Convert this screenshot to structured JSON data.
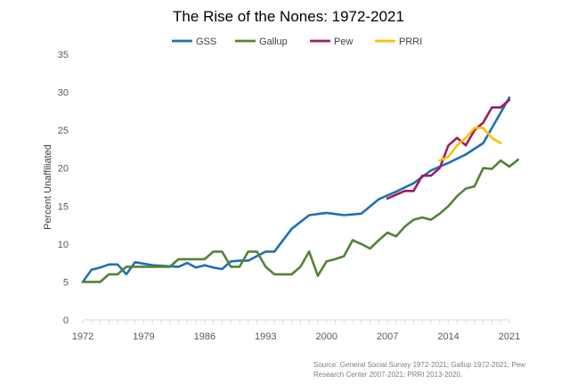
{
  "chart_data": {
    "type": "line",
    "title": "The Rise of the Nones: 1972-2021",
    "ylabel": "Percent Unaffiliated",
    "xlabel": "",
    "xlim": [
      1972,
      2021
    ],
    "ylim": [
      0,
      35
    ],
    "x_ticks": [
      1972,
      1979,
      1986,
      1993,
      2000,
      2007,
      2014,
      2021
    ],
    "y_ticks": [
      0,
      5,
      10,
      15,
      20,
      25,
      30,
      35
    ],
    "legend_position": "top",
    "grid": false,
    "series": [
      {
        "name": "GSS",
        "color": "#1f6fb5",
        "points": [
          [
            1972,
            5.0
          ],
          [
            1973,
            6.6
          ],
          [
            1974,
            6.9
          ],
          [
            1975,
            7.3
          ],
          [
            1976,
            7.3
          ],
          [
            1977,
            6.0
          ],
          [
            1978,
            7.6
          ],
          [
            1980,
            7.2
          ],
          [
            1983,
            7.0
          ],
          [
            1984,
            7.5
          ],
          [
            1985,
            6.9
          ],
          [
            1986,
            7.2
          ],
          [
            1987,
            6.9
          ],
          [
            1988,
            6.7
          ],
          [
            1989,
            7.7
          ],
          [
            1990,
            7.8
          ],
          [
            1991,
            7.8
          ],
          [
            1993,
            9.0
          ],
          [
            1994,
            9.0
          ],
          [
            1996,
            12.0
          ],
          [
            1998,
            13.8
          ],
          [
            2000,
            14.1
          ],
          [
            2002,
            13.8
          ],
          [
            2004,
            14.0
          ],
          [
            2006,
            15.9
          ],
          [
            2008,
            16.9
          ],
          [
            2010,
            18.0
          ],
          [
            2012,
            19.7
          ],
          [
            2014,
            20.7
          ],
          [
            2016,
            21.8
          ],
          [
            2018,
            23.3
          ],
          [
            2021,
            29.3
          ]
        ]
      },
      {
        "name": "Gallup",
        "color": "#548235",
        "points": [
          [
            1972,
            5.0
          ],
          [
            1973,
            5.0
          ],
          [
            1974,
            5.0
          ],
          [
            1975,
            6.0
          ],
          [
            1976,
            6.0
          ],
          [
            1977,
            7.0
          ],
          [
            1978,
            7.0
          ],
          [
            1980,
            7.0
          ],
          [
            1981,
            7.0
          ],
          [
            1982,
            7.0
          ],
          [
            1983,
            8.0
          ],
          [
            1984,
            8.0
          ],
          [
            1985,
            8.0
          ],
          [
            1986,
            8.0
          ],
          [
            1987,
            9.0
          ],
          [
            1988,
            9.0
          ],
          [
            1989,
            7.0
          ],
          [
            1990,
            7.0
          ],
          [
            1991,
            9.0
          ],
          [
            1992,
            9.0
          ],
          [
            1993,
            7.0
          ],
          [
            1994,
            6.0
          ],
          [
            1995,
            6.0
          ],
          [
            1996,
            6.0
          ],
          [
            1997,
            7.0
          ],
          [
            1998,
            9.0
          ],
          [
            1999,
            5.8
          ],
          [
            2000,
            7.7
          ],
          [
            2001,
            8.0
          ],
          [
            2002,
            8.4
          ],
          [
            2003,
            10.5
          ],
          [
            2004,
            10.0
          ],
          [
            2005,
            9.4
          ],
          [
            2006,
            10.5
          ],
          [
            2007,
            11.5
          ],
          [
            2008,
            11.0
          ],
          [
            2009,
            12.3
          ],
          [
            2010,
            13.2
          ],
          [
            2011,
            13.5
          ],
          [
            2012,
            13.2
          ],
          [
            2013,
            14.0
          ],
          [
            2014,
            15.0
          ],
          [
            2015,
            16.3
          ],
          [
            2016,
            17.3
          ],
          [
            2017,
            17.6
          ],
          [
            2018,
            20.0
          ],
          [
            2019,
            19.9
          ],
          [
            2020,
            21.0
          ],
          [
            2021,
            20.2
          ],
          [
            2022,
            21.1
          ]
        ]
      },
      {
        "name": "Pew",
        "color": "#a21a63",
        "points": [
          [
            2007,
            16.0
          ],
          [
            2008,
            16.5
          ],
          [
            2009,
            17.0
          ],
          [
            2010,
            17.0
          ],
          [
            2011,
            19.0
          ],
          [
            2012,
            19.0
          ],
          [
            2013,
            20.0
          ],
          [
            2014,
            23.0
          ],
          [
            2015,
            24.0
          ],
          [
            2016,
            23.0
          ],
          [
            2017,
            25.0
          ],
          [
            2018,
            26.0
          ],
          [
            2019,
            28.0
          ],
          [
            2020,
            28.0
          ],
          [
            2021,
            29.0
          ]
        ]
      },
      {
        "name": "PRRI",
        "color": "#ffc000",
        "points": [
          [
            2013,
            21.0
          ],
          [
            2014,
            21.5
          ],
          [
            2015,
            23.0
          ],
          [
            2016,
            24.0
          ],
          [
            2017,
            25.3
          ],
          [
            2018,
            25.3
          ],
          [
            2019,
            24.0
          ],
          [
            2020,
            23.3
          ]
        ]
      }
    ]
  },
  "source_text": "Source:  General  Social Survey 1972-2021; Gallup 1972-2021; Pew Research Center 2007-2021; PRRI 2013-2020."
}
